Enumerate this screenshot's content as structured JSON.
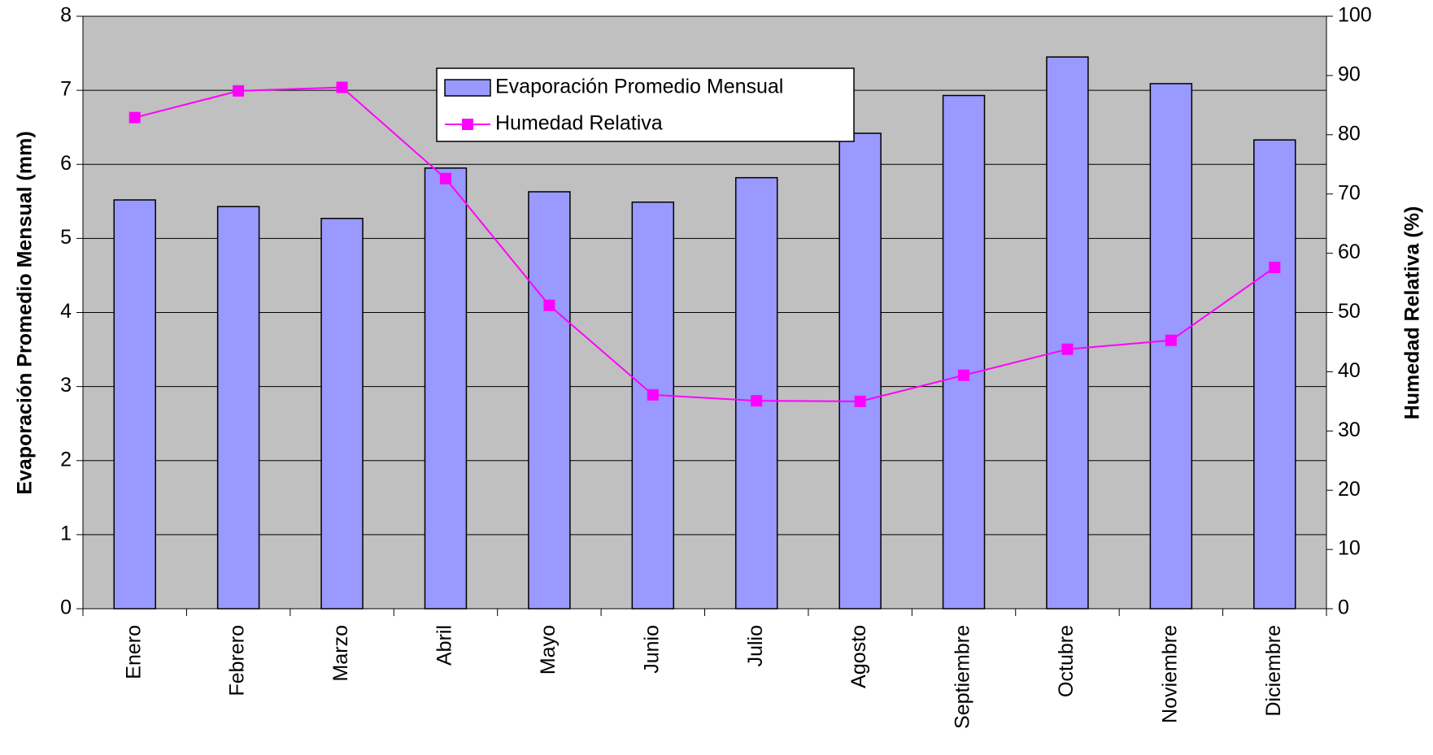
{
  "chart_data": {
    "type": "bar_line",
    "categories": [
      "Enero",
      "Febrero",
      "Marzo",
      "Abril",
      "Mayo",
      "Junio",
      "Julio",
      "Agosto",
      "Septiembre",
      "Octubre",
      "Noviembre",
      "Diciembre"
    ],
    "series": [
      {
        "name": "Evaporación Promedio Mensual",
        "color": "#9999ff",
        "type": "bar",
        "values": [
          5.52,
          5.43,
          5.27,
          5.95,
          5.63,
          5.49,
          5.82,
          6.42,
          6.93,
          7.45,
          7.09,
          6.33
        ]
      },
      {
        "name": "Humedad Relativa",
        "color": "#ff00ff",
        "type": "line",
        "axis": "y2",
        "values": [
          82.9,
          87.4,
          88.0,
          72.6,
          51.2,
          36.1,
          35.1,
          35.0,
          39.4,
          43.8,
          45.3,
          57.6
        ]
      }
    ],
    "ylabel": "Evaporación Promedio Mensual (mm)",
    "y2label": "Humedad Relativa (%)",
    "ylim": [
      0,
      8
    ],
    "yticks": [
      0,
      1,
      2,
      3,
      4,
      5,
      6,
      7,
      8
    ],
    "y2lim": [
      0,
      100
    ],
    "y2ticks": [
      0,
      10,
      20,
      30,
      40,
      50,
      60,
      70,
      80,
      90,
      100
    ],
    "grid": true
  }
}
